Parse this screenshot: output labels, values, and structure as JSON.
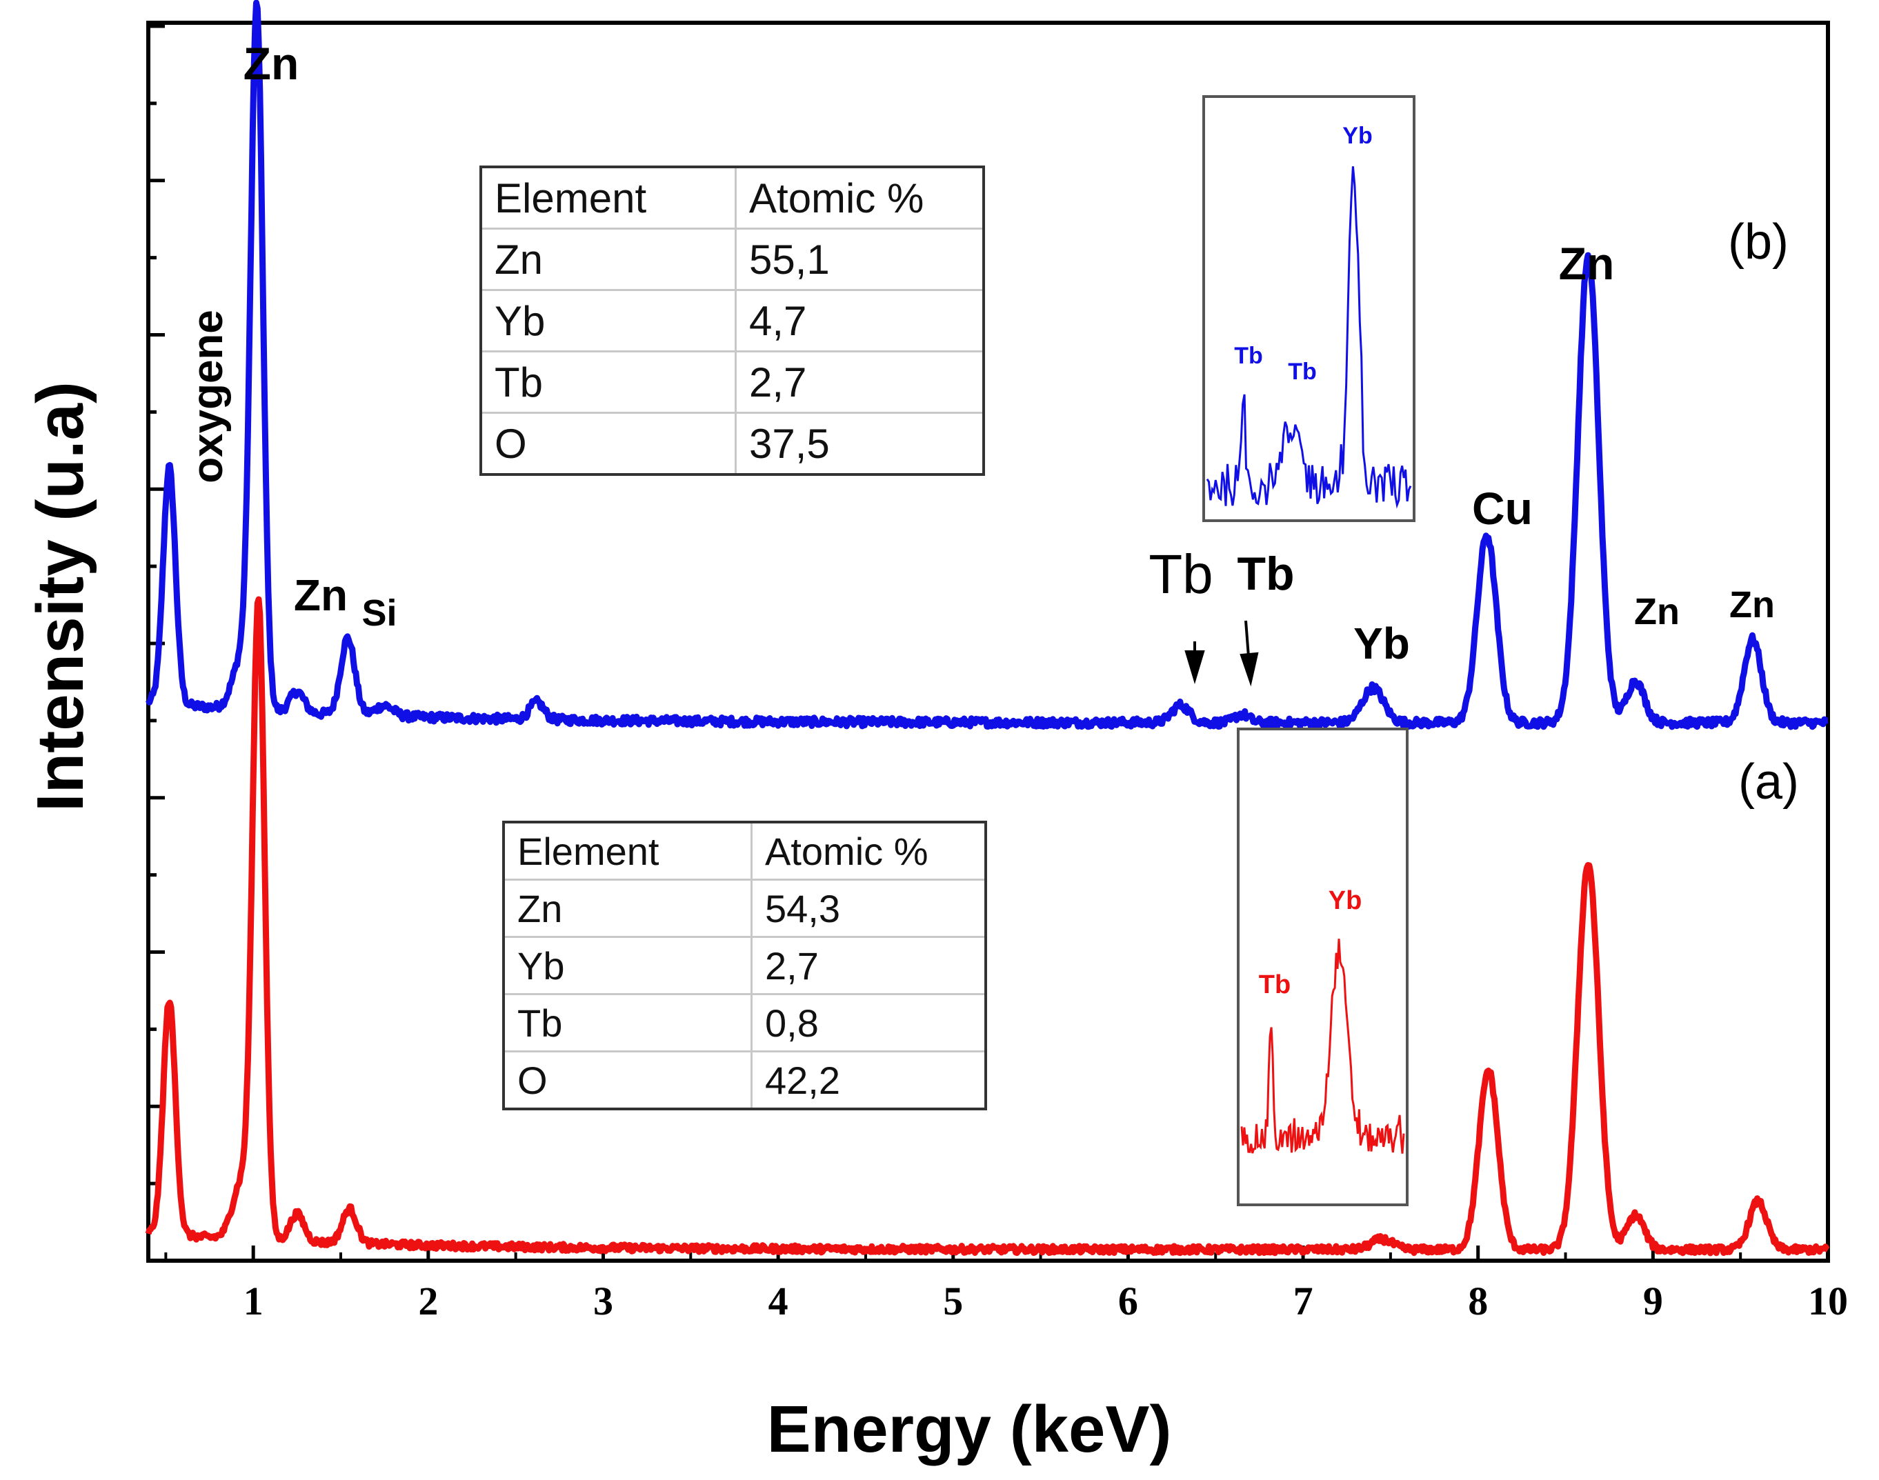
{
  "chart_data": {
    "type": "line",
    "xlabel": "Energy (keV)",
    "ylabel": "Intensity (u.a)",
    "xlim": [
      0.4,
      10
    ],
    "x_ticks": [
      "1",
      "2",
      "3",
      "4",
      "5",
      "6",
      "7",
      "8",
      "9",
      "10"
    ],
    "series": [
      {
        "name": "(b)",
        "color": "#1010e6",
        "baseline": 0.05,
        "peaks": [
          {
            "x": 0.52,
            "height": 0.34,
            "width": 0.035
          },
          {
            "x": 0.93,
            "height": 0.07,
            "width": 0.05
          },
          {
            "x": 1.02,
            "height": 1.0,
            "width": 0.035
          },
          {
            "x": 1.25,
            "height": 0.03,
            "width": 0.04
          },
          {
            "x": 1.54,
            "height": 0.11,
            "width": 0.04
          },
          {
            "x": 1.75,
            "height": 0.015,
            "width": 0.05
          },
          {
            "x": 2.62,
            "height": 0.025,
            "width": 0.04
          },
          {
            "x": 6.3,
            "height": 0.025,
            "width": 0.05
          },
          {
            "x": 6.65,
            "height": 0.012,
            "width": 0.04
          },
          {
            "x": 7.4,
            "height": 0.05,
            "width": 0.06
          },
          {
            "x": 8.05,
            "height": 0.27,
            "width": 0.055
          },
          {
            "x": 8.63,
            "height": 0.67,
            "width": 0.06
          },
          {
            "x": 8.9,
            "height": 0.06,
            "width": 0.05
          },
          {
            "x": 9.57,
            "height": 0.12,
            "width": 0.05
          }
        ]
      },
      {
        "name": "(a)",
        "color": "#ee1111",
        "baseline": 0.04,
        "peaks": [
          {
            "x": 0.52,
            "height": 0.34,
            "width": 0.035
          },
          {
            "x": 0.93,
            "height": 0.08,
            "width": 0.05
          },
          {
            "x": 1.03,
            "height": 0.92,
            "width": 0.035
          },
          {
            "x": 1.25,
            "height": 0.04,
            "width": 0.04
          },
          {
            "x": 1.55,
            "height": 0.05,
            "width": 0.04
          },
          {
            "x": 7.45,
            "height": 0.015,
            "width": 0.06
          },
          {
            "x": 8.06,
            "height": 0.26,
            "width": 0.055
          },
          {
            "x": 8.63,
            "height": 0.56,
            "width": 0.06
          },
          {
            "x": 8.9,
            "height": 0.05,
            "width": 0.05
          },
          {
            "x": 9.6,
            "height": 0.07,
            "width": 0.05
          }
        ]
      }
    ],
    "panel_labels": {
      "b": "(b)",
      "a": "(a)"
    },
    "peak_labels": [
      {
        "text": "Zn",
        "x": 1.02,
        "series": "(b)",
        "style": "bold"
      },
      {
        "text": "oxygene",
        "x": 0.52,
        "series": "(b)",
        "style": "bold-vertical"
      },
      {
        "text": "Zn",
        "x": 1.22,
        "series": "(b)",
        "style": "bold"
      },
      {
        "text": "Si",
        "x": 1.58,
        "series": "(b)",
        "style": "bold"
      },
      {
        "text": "Tb",
        "x": 6.3,
        "series": "(b)",
        "style": "normal"
      },
      {
        "text": "Tb",
        "x": 6.75,
        "series": "(b)",
        "style": "bold"
      },
      {
        "text": "Yb",
        "x": 7.4,
        "series": "(b)",
        "style": "bold"
      },
      {
        "text": "Cu",
        "x": 8.12,
        "series": "(b)",
        "style": "bold"
      },
      {
        "text": "Zn",
        "x": 8.63,
        "series": "(b)",
        "style": "bold"
      },
      {
        "text": "Zn",
        "x": 8.97,
        "series": "(b)",
        "style": "bold"
      },
      {
        "text": "Zn",
        "x": 9.57,
        "series": "(b)",
        "style": "bold"
      }
    ],
    "insets": [
      {
        "series": "(b)",
        "labels": [
          "Yb",
          "Tb",
          "Tb"
        ]
      },
      {
        "series": "(a)",
        "labels": [
          "Yb",
          "Tb"
        ]
      }
    ]
  },
  "tables": {
    "b": {
      "header": [
        "Element",
        "Atomic %"
      ],
      "rows": [
        [
          "Zn",
          "55,1"
        ],
        [
          "Yb",
          "4,7"
        ],
        [
          "Tb",
          "2,7"
        ],
        [
          "O",
          "37,5"
        ]
      ]
    },
    "a": {
      "header": [
        "Element",
        "Atomic %"
      ],
      "rows": [
        [
          "Zn",
          "54,3"
        ],
        [
          "Yb",
          "2,7"
        ],
        [
          "Tb",
          "0,8"
        ],
        [
          "O",
          "42,2"
        ]
      ]
    }
  }
}
